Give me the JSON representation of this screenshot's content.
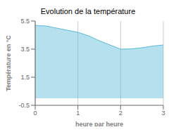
{
  "chart_data": {
    "type": "area",
    "title": "Evolution de la température",
    "xlabel": "heure par heure",
    "ylabel": "Température en °C",
    "x": [
      0,
      0.25,
      0.5,
      0.75,
      1.0,
      1.25,
      1.5,
      1.75,
      2.0,
      2.25,
      2.5,
      2.75,
      3.0
    ],
    "values": [
      5.2,
      5.15,
      5.0,
      4.85,
      4.7,
      4.45,
      4.1,
      3.8,
      3.5,
      3.52,
      3.6,
      3.72,
      3.8
    ],
    "xlim": [
      0,
      3
    ],
    "ylim": [
      -0.5,
      5.5
    ],
    "xticks": [
      0,
      1,
      2,
      3
    ],
    "yticks": [
      -0.5,
      1.5,
      3.5,
      5.5
    ],
    "color": "#5bbbd8",
    "grid": "x"
  }
}
